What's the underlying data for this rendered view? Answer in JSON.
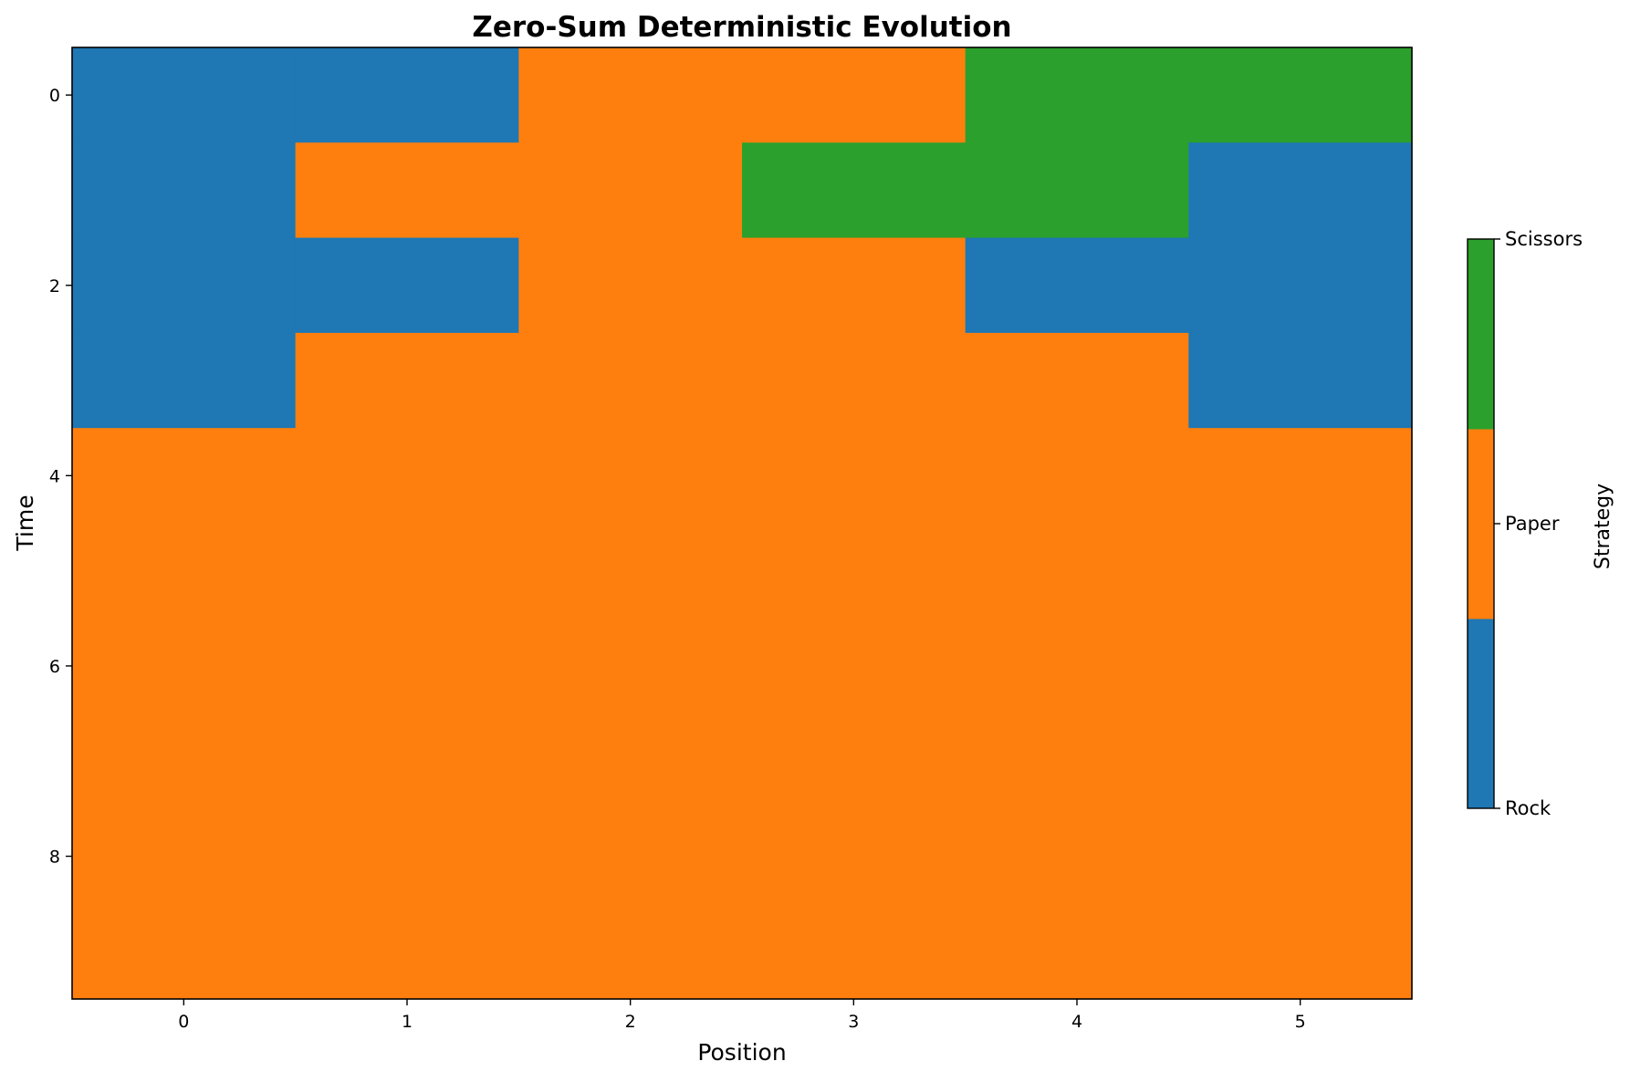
{
  "chart_data": {
    "type": "heatmap",
    "title": "Zero-Sum Deterministic Evolution",
    "xlabel": "Position",
    "ylabel": "Time",
    "x_ticks": [
      "0",
      "1",
      "2",
      "3",
      "4",
      "5"
    ],
    "y_ticks": [
      "0",
      "2",
      "4",
      "6",
      "8"
    ],
    "x_range": [
      -0.5,
      5.5
    ],
    "y_range": [
      -0.5,
      9.5
    ],
    "grid": false,
    "categories": [
      "Rock",
      "Paper",
      "Scissors"
    ],
    "colors": {
      "Rock": "#1f77b4",
      "Paper": "#ff7f0e",
      "Scissors": "#2ca02c"
    },
    "colorbar": {
      "label": "Strategy",
      "ticks": [
        "Rock",
        "Paper",
        "Scissors"
      ],
      "placement": "right"
    },
    "grid_values": [
      [
        "Rock",
        "Rock",
        "Paper",
        "Paper",
        "Scissors",
        "Scissors"
      ],
      [
        "Rock",
        "Paper",
        "Paper",
        "Scissors",
        "Scissors",
        "Rock"
      ],
      [
        "Rock",
        "Rock",
        "Paper",
        "Paper",
        "Rock",
        "Rock"
      ],
      [
        "Rock",
        "Paper",
        "Paper",
        "Paper",
        "Paper",
        "Rock"
      ],
      [
        "Paper",
        "Paper",
        "Paper",
        "Paper",
        "Paper",
        "Paper"
      ],
      [
        "Paper",
        "Paper",
        "Paper",
        "Paper",
        "Paper",
        "Paper"
      ],
      [
        "Paper",
        "Paper",
        "Paper",
        "Paper",
        "Paper",
        "Paper"
      ],
      [
        "Paper",
        "Paper",
        "Paper",
        "Paper",
        "Paper",
        "Paper"
      ],
      [
        "Paper",
        "Paper",
        "Paper",
        "Paper",
        "Paper",
        "Paper"
      ],
      [
        "Paper",
        "Paper",
        "Paper",
        "Paper",
        "Paper",
        "Paper"
      ]
    ]
  }
}
